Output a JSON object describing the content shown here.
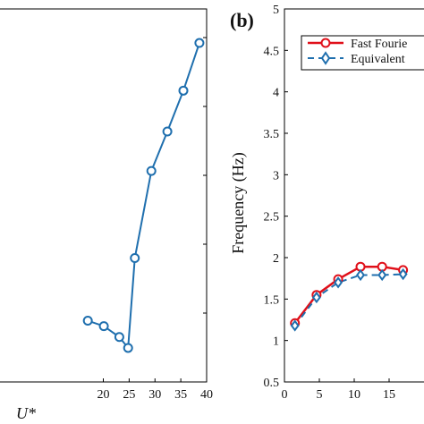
{
  "chart_data": [
    {
      "type": "line",
      "xlabel": "U*",
      "xlim": [
        0,
        40
      ],
      "x_ticks": [
        "20",
        "25",
        "30",
        "35",
        "40"
      ],
      "series": [
        {
          "color": "#1f6fae",
          "marker": "circle",
          "x": [
            17,
            20.1,
            23.1,
            24.8,
            26.1,
            29.3,
            32.4,
            35.5,
            38.6
          ],
          "y": [
            0.45,
            0.41,
            0.33,
            0.25,
            0.91,
            1.55,
            1.84,
            2.14,
            2.49
          ]
        }
      ],
      "y_range_hidden": [
        0,
        2.74
      ]
    },
    {
      "type": "line",
      "panel_label": "(b)",
      "ylabel": "Frequency (Hz)",
      "xlim": [
        0,
        20
      ],
      "ylim": [
        0.5,
        5
      ],
      "x_ticks": [
        "0",
        "5",
        "10",
        "15"
      ],
      "y_ticks": [
        "0.5",
        "1",
        "1.5",
        "2",
        "2.5",
        "3",
        "3.5",
        "4",
        "4.5",
        "5"
      ],
      "legend_position": "top-right",
      "series": [
        {
          "name": "Fast Fourie",
          "color": "#e0101a",
          "marker": "circle",
          "style": "solid",
          "x": [
            1.5,
            4.6,
            7.7,
            10.9,
            14.0,
            17.0
          ],
          "y": [
            1.21,
            1.55,
            1.74,
            1.89,
            1.89,
            1.85
          ]
        },
        {
          "name": "Equivalent",
          "color": "#1f6fae",
          "marker": "diamond",
          "style": "dashed",
          "x": [
            1.5,
            4.6,
            7.7,
            10.9,
            14.0,
            17.0
          ],
          "y": [
            1.18,
            1.52,
            1.7,
            1.79,
            1.79,
            1.8
          ]
        }
      ]
    }
  ]
}
